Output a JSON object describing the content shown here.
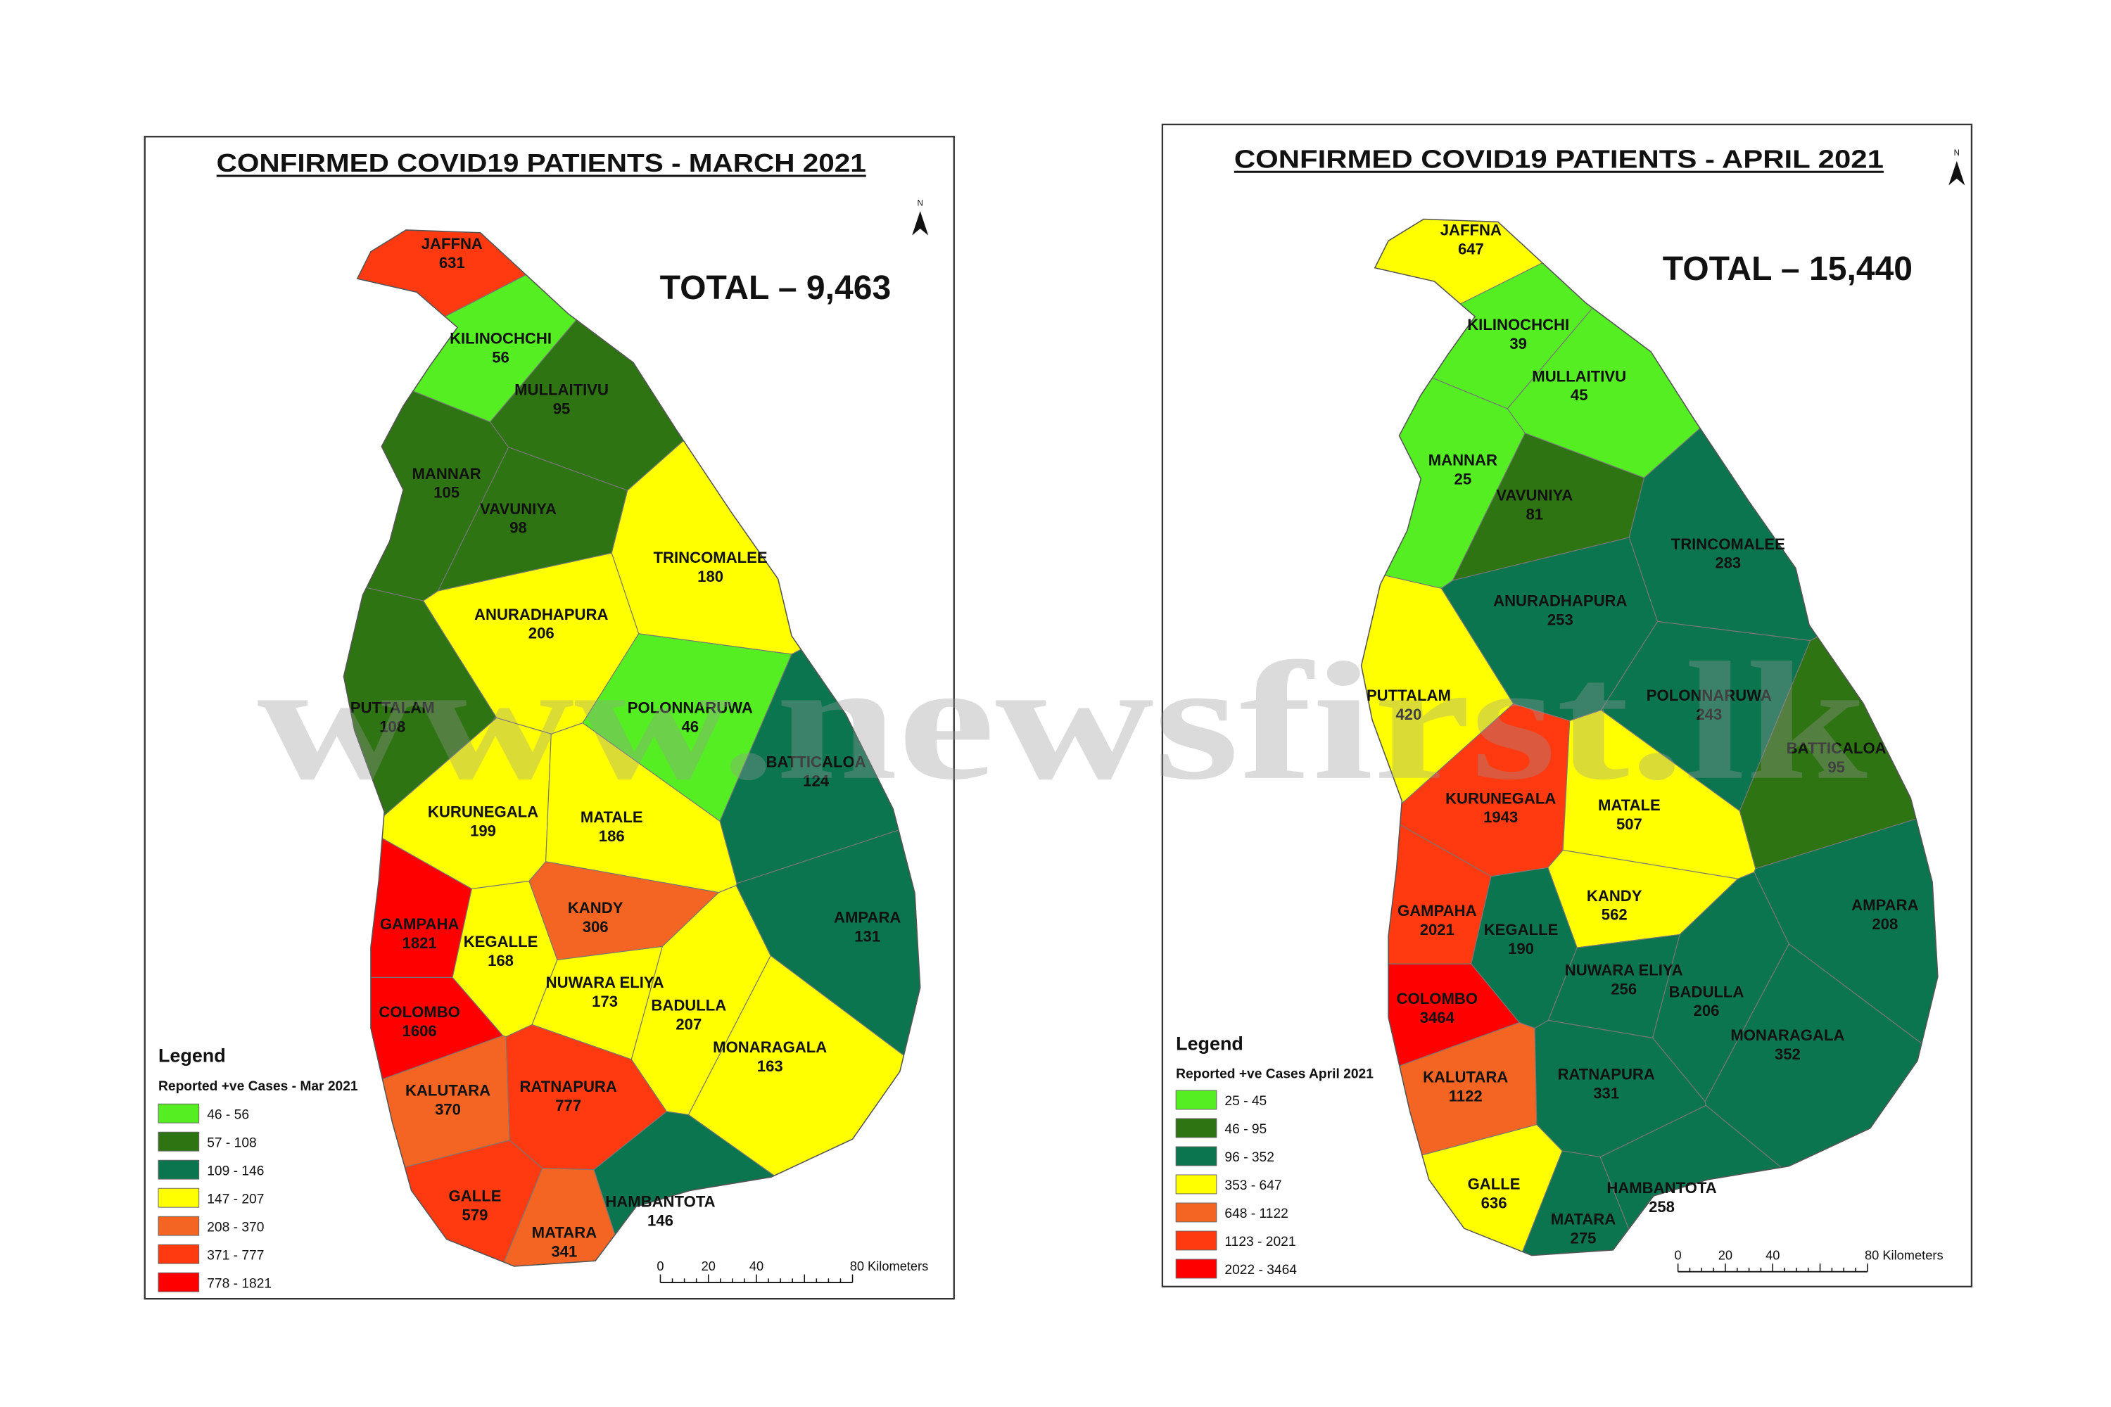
{
  "watermark": "www.newsfirst.lk",
  "maps": [
    {
      "title": "CONFIRMED COVID19 PATIENTS - MARCH  2021",
      "total": "TOTAL – 9,463",
      "north": "N",
      "scale": [
        "0",
        "20",
        "40",
        "80 Kilometers"
      ],
      "legend": {
        "title": "Legend",
        "subtitle": "Reported +ve Cases - Mar 2021",
        "items": [
          {
            "label": "46 - 56",
            "color": "#55ee22"
          },
          {
            "label": "57 - 108",
            "color": "#2e7412"
          },
          {
            "label": "109 - 146",
            "color": "#0b7550"
          },
          {
            "label": "147 - 207",
            "color": "#ffff00"
          },
          {
            "label": "208 - 370",
            "color": "#f46523"
          },
          {
            "label": "371 - 777",
            "color": "#ff3a10"
          },
          {
            "label": "778 - 1821",
            "color": "#ff0000"
          }
        ]
      },
      "districts": [
        {
          "name": "JAFFNA",
          "value": 631,
          "color": "#ff3a10"
        },
        {
          "name": "KILINOCHCHI",
          "value": 56,
          "color": "#55ee22"
        },
        {
          "name": "MULLAITIVU",
          "value": 95,
          "color": "#2e7412"
        },
        {
          "name": "MANNAR",
          "value": 105,
          "color": "#2e7412"
        },
        {
          "name": "VAVUNIYA",
          "value": 98,
          "color": "#2e7412"
        },
        {
          "name": "TRINCOMALEE",
          "value": 180,
          "color": "#ffff00"
        },
        {
          "name": "ANURADHAPURA",
          "value": 206,
          "color": "#ffff00"
        },
        {
          "name": "PUTTALAM",
          "value": 108,
          "color": "#2e7412"
        },
        {
          "name": "POLONNARUWA",
          "value": 46,
          "color": "#55ee22"
        },
        {
          "name": "BATTICALOA",
          "value": 124,
          "color": "#0b7550"
        },
        {
          "name": "KURUNEGALA",
          "value": 199,
          "color": "#ffff00"
        },
        {
          "name": "MATALE",
          "value": 186,
          "color": "#ffff00"
        },
        {
          "name": "KANDY",
          "value": 306,
          "color": "#f46523"
        },
        {
          "name": "GAMPAHA",
          "value": 1821,
          "color": "#ff0000"
        },
        {
          "name": "KEGALLE",
          "value": 168,
          "color": "#ffff00"
        },
        {
          "name": "AMPARA",
          "value": 131,
          "color": "#0b7550"
        },
        {
          "name": "NUWARA ELIYA",
          "value": 173,
          "color": "#ffff00"
        },
        {
          "name": "BADULLA",
          "value": 207,
          "color": "#ffff00"
        },
        {
          "name": "COLOMBO",
          "value": 1606,
          "color": "#ff0000"
        },
        {
          "name": "MONARAGALA",
          "value": 163,
          "color": "#ffff00"
        },
        {
          "name": "KALUTARA",
          "value": 370,
          "color": "#f46523"
        },
        {
          "name": "RATNAPURA",
          "value": 777,
          "color": "#ff3a10"
        },
        {
          "name": "GALLE",
          "value": 579,
          "color": "#ff3a10"
        },
        {
          "name": "MATARA",
          "value": 341,
          "color": "#f46523"
        },
        {
          "name": "HAMBANTOTA",
          "value": 146,
          "color": "#0b7550"
        }
      ]
    },
    {
      "title": "CONFIRMED COVID19 PATIENTS - APRIL 2021",
      "total": "TOTAL – 15,440",
      "north": "N",
      "scale": [
        "0",
        "20",
        "40",
        "80 Kilometers"
      ],
      "legend": {
        "title": "Legend",
        "subtitle": "Reported +ve Cases April 2021",
        "items": [
          {
            "label": "25 - 45",
            "color": "#55ee22"
          },
          {
            "label": "46 - 95",
            "color": "#2e7412"
          },
          {
            "label": "96 - 352",
            "color": "#0b7550"
          },
          {
            "label": "353 - 647",
            "color": "#ffff00"
          },
          {
            "label": "648 - 1122",
            "color": "#f46523"
          },
          {
            "label": "1123 - 2021",
            "color": "#ff3a10"
          },
          {
            "label": "2022 - 3464",
            "color": "#ff0000"
          }
        ]
      },
      "districts": [
        {
          "name": "JAFFNA",
          "value": 647,
          "color": "#ffff00"
        },
        {
          "name": "KILINOCHCHI",
          "value": 39,
          "color": "#55ee22"
        },
        {
          "name": "MULLAITIVU",
          "value": 45,
          "color": "#55ee22"
        },
        {
          "name": "MANNAR",
          "value": 25,
          "color": "#55ee22"
        },
        {
          "name": "VAVUNIYA",
          "value": 81,
          "color": "#2e7412"
        },
        {
          "name": "TRINCOMALEE",
          "value": 283,
          "color": "#0b7550"
        },
        {
          "name": "ANURADHAPURA",
          "value": 253,
          "color": "#0b7550"
        },
        {
          "name": "PUTTALAM",
          "value": 420,
          "color": "#ffff00"
        },
        {
          "name": "POLONNARUWA",
          "value": 243,
          "color": "#0b7550"
        },
        {
          "name": "BATTICALOA",
          "value": 95,
          "color": "#2e7412"
        },
        {
          "name": "KURUNEGALA",
          "value": 1943,
          "color": "#ff3a10"
        },
        {
          "name": "MATALE",
          "value": 507,
          "color": "#ffff00"
        },
        {
          "name": "KANDY",
          "value": 562,
          "color": "#ffff00"
        },
        {
          "name": "GAMPAHA",
          "value": 2021,
          "color": "#ff3a10"
        },
        {
          "name": "KEGALLE",
          "value": 190,
          "color": "#0b7550"
        },
        {
          "name": "AMPARA",
          "value": 208,
          "color": "#0b7550"
        },
        {
          "name": "NUWARA ELIYA",
          "value": 256,
          "color": "#0b7550"
        },
        {
          "name": "BADULLA",
          "value": 206,
          "color": "#0b7550"
        },
        {
          "name": "COLOMBO",
          "value": 3464,
          "color": "#ff0000"
        },
        {
          "name": "MONARAGALA",
          "value": 352,
          "color": "#0b7550"
        },
        {
          "name": "KALUTARA",
          "value": 1122,
          "color": "#f46523"
        },
        {
          "name": "RATNAPURA",
          "value": 331,
          "color": "#0b7550"
        },
        {
          "name": "GALLE",
          "value": 636,
          "color": "#ffff00"
        },
        {
          "name": "MATARA",
          "value": 275,
          "color": "#0b7550"
        },
        {
          "name": "HAMBANTOTA",
          "value": 258,
          "color": "#0b7550"
        }
      ]
    }
  ]
}
